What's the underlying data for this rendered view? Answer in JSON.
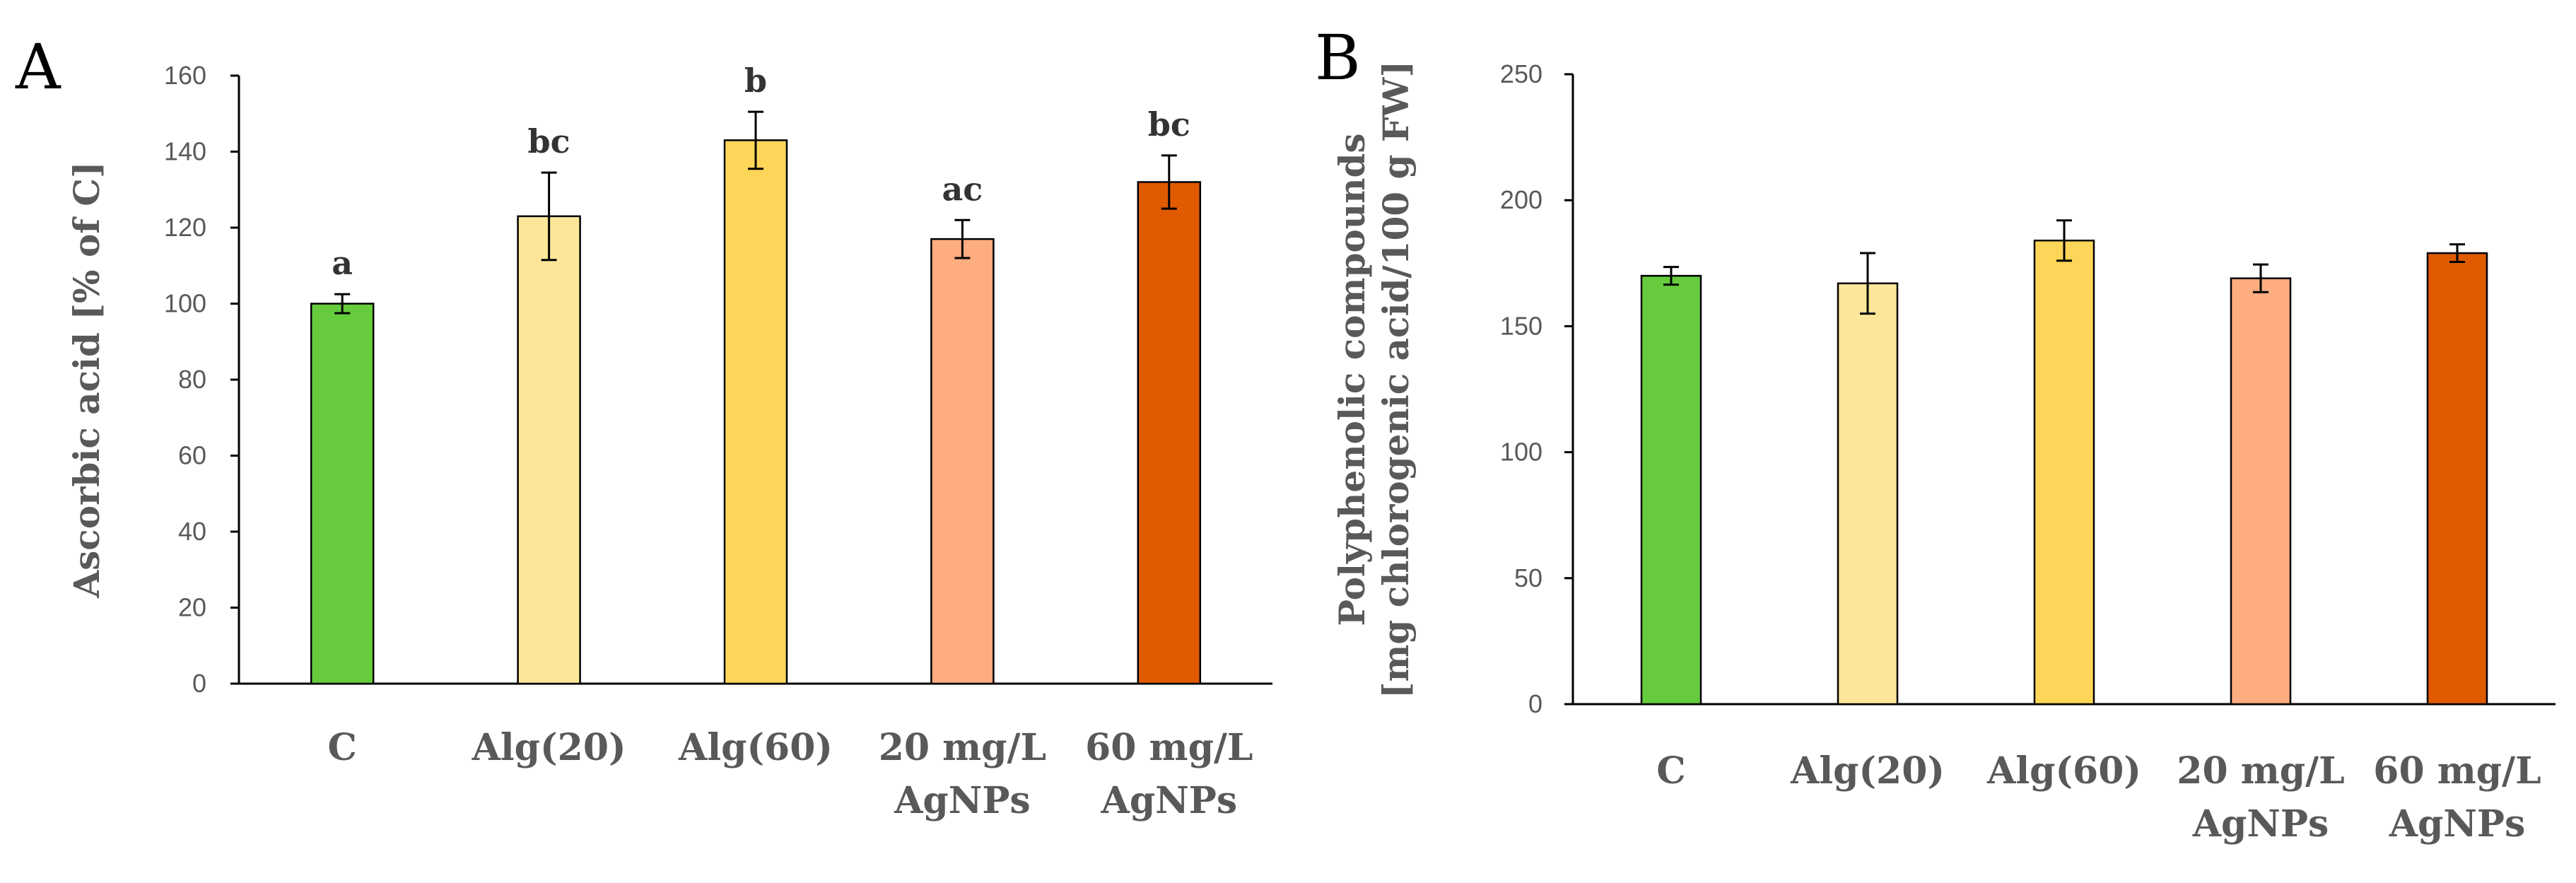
{
  "chart_data": [
    {
      "panel": "A",
      "type": "bar",
      "ylabel": "Ascorbic acid  [% of C]",
      "ylim": [
        0,
        160
      ],
      "yticks": [
        0,
        20,
        40,
        60,
        80,
        100,
        120,
        140,
        160
      ],
      "categories": [
        [
          "C"
        ],
        [
          "Alg(20)"
        ],
        [
          "Alg(60)"
        ],
        [
          "20 mg/L",
          "AgNPs"
        ],
        [
          "60 mg/L",
          "AgNPs"
        ]
      ],
      "values": [
        100,
        123,
        143,
        117,
        132
      ],
      "errors": [
        2.5,
        11.5,
        7.5,
        5,
        7
      ],
      "significance": [
        "a",
        "bc",
        "b",
        "ac",
        "bc"
      ],
      "colors": [
        "#66cc3d",
        "#fde699",
        "#fdd659",
        "#fdad7f",
        "#e05a00"
      ]
    },
    {
      "panel": "B",
      "type": "bar",
      "ylabel": [
        "Polyphenolic compounds",
        "[mg chlorogenic acid/100 g FW]"
      ],
      "ylim": [
        0,
        250
      ],
      "yticks": [
        0,
        50,
        100,
        150,
        200,
        250
      ],
      "categories": [
        [
          "C"
        ],
        [
          "Alg(20)"
        ],
        [
          "Alg(60)"
        ],
        [
          "20 mg/L",
          "AgNPs"
        ],
        [
          "60 mg/L",
          "AgNPs"
        ]
      ],
      "values": [
        170,
        167,
        184,
        169,
        179
      ],
      "errors": [
        3.5,
        12,
        8,
        5.5,
        3.5
      ],
      "colors": [
        "#66cc3d",
        "#fde699",
        "#fdd659",
        "#fdad7f",
        "#e05a00"
      ]
    }
  ]
}
